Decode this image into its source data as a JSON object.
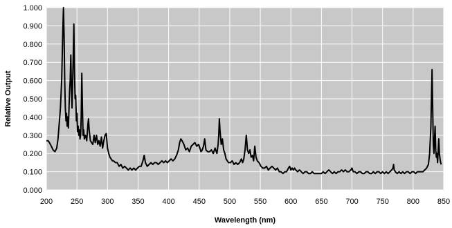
{
  "chart_data": {
    "type": "line",
    "title": "",
    "xlabel": "Wavelength (nm)",
    "ylabel": "Relative Output",
    "xlim": [
      200,
      850
    ],
    "ylim": [
      0,
      1.0
    ],
    "xticks": [
      "200",
      "250",
      "300",
      "350",
      "400",
      "450",
      "500",
      "550",
      "600",
      "650",
      "700",
      "750",
      "800",
      "850"
    ],
    "yticks": [
      "0.000",
      "0.100",
      "0.200",
      "0.300",
      "0.400",
      "0.500",
      "0.600",
      "0.700",
      "0.800",
      "0.900",
      "1.000"
    ],
    "grid": true,
    "legend": "none",
    "colors": {
      "plot_background": "#c8c8c8",
      "line": "#000000",
      "grid": "#ffffff"
    },
    "series": [
      {
        "values": [
          [
            200,
            0.27
          ],
          [
            203,
            0.27
          ],
          [
            205,
            0.26
          ],
          [
            208,
            0.24
          ],
          [
            211,
            0.22
          ],
          [
            214,
            0.21
          ],
          [
            217,
            0.23
          ],
          [
            219,
            0.28
          ],
          [
            221,
            0.36
          ],
          [
            223,
            0.45
          ],
          [
            225,
            0.6
          ],
          [
            226,
            0.75
          ],
          [
            227,
            0.88
          ],
          [
            228,
            1.0
          ],
          [
            229,
            0.85
          ],
          [
            230,
            0.6
          ],
          [
            231,
            0.45
          ],
          [
            232,
            0.38
          ],
          [
            233,
            0.42
          ],
          [
            234,
            0.35
          ],
          [
            235,
            0.4
          ],
          [
            236,
            0.34
          ],
          [
            237,
            0.45
          ],
          [
            238,
            0.55
          ],
          [
            239,
            0.6
          ],
          [
            240,
            0.74
          ],
          [
            241,
            0.55
          ],
          [
            242,
            0.45
          ],
          [
            243,
            0.6
          ],
          [
            244,
            0.75
          ],
          [
            245,
            0.91
          ],
          [
            246,
            0.65
          ],
          [
            247,
            0.5
          ],
          [
            248,
            0.52
          ],
          [
            249,
            0.38
          ],
          [
            250,
            0.42
          ],
          [
            251,
            0.32
          ],
          [
            252,
            0.35
          ],
          [
            253,
            0.3
          ],
          [
            254,
            0.33
          ],
          [
            255,
            0.28
          ],
          [
            256,
            0.3
          ],
          [
            257,
            0.4
          ],
          [
            258,
            0.64
          ],
          [
            259,
            0.45
          ],
          [
            260,
            0.3
          ],
          [
            261,
            0.33
          ],
          [
            262,
            0.28
          ],
          [
            264,
            0.3
          ],
          [
            266,
            0.27
          ],
          [
            268,
            0.36
          ],
          [
            269,
            0.39
          ],
          [
            270,
            0.33
          ],
          [
            272,
            0.27
          ],
          [
            274,
            0.26
          ],
          [
            276,
            0.25
          ],
          [
            278,
            0.3
          ],
          [
            280,
            0.26
          ],
          [
            282,
            0.3
          ],
          [
            284,
            0.25
          ],
          [
            286,
            0.27
          ],
          [
            288,
            0.24
          ],
          [
            290,
            0.29
          ],
          [
            292,
            0.23
          ],
          [
            294,
            0.27
          ],
          [
            296,
            0.3
          ],
          [
            298,
            0.31
          ],
          [
            300,
            0.23
          ],
          [
            302,
            0.2
          ],
          [
            304,
            0.18
          ],
          [
            306,
            0.17
          ],
          [
            308,
            0.16
          ],
          [
            310,
            0.16
          ],
          [
            313,
            0.15
          ],
          [
            316,
            0.15
          ],
          [
            319,
            0.13
          ],
          [
            322,
            0.14
          ],
          [
            325,
            0.12
          ],
          [
            328,
            0.13
          ],
          [
            331,
            0.12
          ],
          [
            334,
            0.11
          ],
          [
            337,
            0.12
          ],
          [
            340,
            0.11
          ],
          [
            343,
            0.12
          ],
          [
            346,
            0.11
          ],
          [
            349,
            0.12
          ],
          [
            352,
            0.13
          ],
          [
            355,
            0.13
          ],
          [
            358,
            0.16
          ],
          [
            360,
            0.19
          ],
          [
            362,
            0.15
          ],
          [
            365,
            0.13
          ],
          [
            368,
            0.14
          ],
          [
            371,
            0.15
          ],
          [
            374,
            0.14
          ],
          [
            377,
            0.15
          ],
          [
            380,
            0.15
          ],
          [
            383,
            0.14
          ],
          [
            386,
            0.15
          ],
          [
            389,
            0.16
          ],
          [
            392,
            0.15
          ],
          [
            395,
            0.16
          ],
          [
            398,
            0.15
          ],
          [
            401,
            0.16
          ],
          [
            404,
            0.17
          ],
          [
            407,
            0.16
          ],
          [
            410,
            0.17
          ],
          [
            413,
            0.19
          ],
          [
            416,
            0.22
          ],
          [
            418,
            0.26
          ],
          [
            420,
            0.28
          ],
          [
            422,
            0.27
          ],
          [
            425,
            0.25
          ],
          [
            428,
            0.22
          ],
          [
            431,
            0.23
          ],
          [
            434,
            0.21
          ],
          [
            437,
            0.24
          ],
          [
            440,
            0.25
          ],
          [
            443,
            0.26
          ],
          [
            446,
            0.24
          ],
          [
            449,
            0.25
          ],
          [
            451,
            0.23
          ],
          [
            453,
            0.21
          ],
          [
            455,
            0.22
          ],
          [
            457,
            0.24
          ],
          [
            459,
            0.28
          ],
          [
            461,
            0.22
          ],
          [
            464,
            0.21
          ],
          [
            467,
            0.21
          ],
          [
            470,
            0.22
          ],
          [
            473,
            0.2
          ],
          [
            476,
            0.23
          ],
          [
            479,
            0.2
          ],
          [
            481,
            0.25
          ],
          [
            482,
            0.3
          ],
          [
            483,
            0.39
          ],
          [
            484,
            0.33
          ],
          [
            485,
            0.29
          ],
          [
            486,
            0.25
          ],
          [
            488,
            0.28
          ],
          [
            490,
            0.22
          ],
          [
            492,
            0.2
          ],
          [
            494,
            0.17
          ],
          [
            496,
            0.16
          ],
          [
            498,
            0.15
          ],
          [
            501,
            0.15
          ],
          [
            504,
            0.16
          ],
          [
            507,
            0.14
          ],
          [
            510,
            0.15
          ],
          [
            513,
            0.14
          ],
          [
            516,
            0.15
          ],
          [
            519,
            0.17
          ],
          [
            521,
            0.15
          ],
          [
            523,
            0.17
          ],
          [
            525,
            0.22
          ],
          [
            527,
            0.3
          ],
          [
            529,
            0.22
          ],
          [
            531,
            0.2
          ],
          [
            533,
            0.22
          ],
          [
            535,
            0.18
          ],
          [
            537,
            0.19
          ],
          [
            539,
            0.16
          ],
          [
            541,
            0.24
          ],
          [
            543,
            0.18
          ],
          [
            545,
            0.16
          ],
          [
            548,
            0.15
          ],
          [
            551,
            0.13
          ],
          [
            554,
            0.12
          ],
          [
            557,
            0.12
          ],
          [
            560,
            0.13
          ],
          [
            563,
            0.11
          ],
          [
            566,
            0.12
          ],
          [
            569,
            0.13
          ],
          [
            572,
            0.12
          ],
          [
            575,
            0.11
          ],
          [
            578,
            0.12
          ],
          [
            581,
            0.1
          ],
          [
            584,
            0.1
          ],
          [
            587,
            0.09
          ],
          [
            590,
            0.1
          ],
          [
            593,
            0.1
          ],
          [
            596,
            0.12
          ],
          [
            598,
            0.13
          ],
          [
            600,
            0.11
          ],
          [
            602,
            0.12
          ],
          [
            604,
            0.11
          ],
          [
            606,
            0.12
          ],
          [
            608,
            0.11
          ],
          [
            611,
            0.1
          ],
          [
            614,
            0.11
          ],
          [
            617,
            0.1
          ],
          [
            620,
            0.09
          ],
          [
            623,
            0.1
          ],
          [
            626,
            0.1
          ],
          [
            629,
            0.09
          ],
          [
            632,
            0.09
          ],
          [
            635,
            0.1
          ],
          [
            638,
            0.09
          ],
          [
            641,
            0.09
          ],
          [
            644,
            0.09
          ],
          [
            647,
            0.09
          ],
          [
            650,
            0.09
          ],
          [
            653,
            0.1
          ],
          [
            656,
            0.09
          ],
          [
            659,
            0.1
          ],
          [
            662,
            0.11
          ],
          [
            665,
            0.1
          ],
          [
            668,
            0.09
          ],
          [
            671,
            0.1
          ],
          [
            674,
            0.09
          ],
          [
            677,
            0.1
          ],
          [
            680,
            0.1
          ],
          [
            683,
            0.11
          ],
          [
            686,
            0.1
          ],
          [
            689,
            0.11
          ],
          [
            692,
            0.1
          ],
          [
            695,
            0.1
          ],
          [
            698,
            0.11
          ],
          [
            700,
            0.12
          ],
          [
            702,
            0.1
          ],
          [
            705,
            0.1
          ],
          [
            708,
            0.09
          ],
          [
            711,
            0.1
          ],
          [
            714,
            0.1
          ],
          [
            717,
            0.09
          ],
          [
            720,
            0.09
          ],
          [
            723,
            0.1
          ],
          [
            726,
            0.1
          ],
          [
            729,
            0.09
          ],
          [
            732,
            0.09
          ],
          [
            735,
            0.1
          ],
          [
            738,
            0.09
          ],
          [
            741,
            0.1
          ],
          [
            744,
            0.1
          ],
          [
            747,
            0.09
          ],
          [
            750,
            0.1
          ],
          [
            753,
            0.09
          ],
          [
            756,
            0.1
          ],
          [
            759,
            0.09
          ],
          [
            762,
            0.1
          ],
          [
            765,
            0.11
          ],
          [
            767,
            0.12
          ],
          [
            768,
            0.14
          ],
          [
            769,
            0.11
          ],
          [
            771,
            0.1
          ],
          [
            774,
            0.09
          ],
          [
            777,
            0.1
          ],
          [
            780,
            0.09
          ],
          [
            783,
            0.1
          ],
          [
            786,
            0.09
          ],
          [
            789,
            0.1
          ],
          [
            792,
            0.1
          ],
          [
            795,
            0.09
          ],
          [
            798,
            0.1
          ],
          [
            801,
            0.1
          ],
          [
            804,
            0.09
          ],
          [
            807,
            0.1
          ],
          [
            810,
            0.1
          ],
          [
            813,
            0.1
          ],
          [
            816,
            0.1
          ],
          [
            819,
            0.11
          ],
          [
            822,
            0.12
          ],
          [
            825,
            0.14
          ],
          [
            827,
            0.2
          ],
          [
            829,
            0.35
          ],
          [
            830,
            0.5
          ],
          [
            831,
            0.66
          ],
          [
            832,
            0.45
          ],
          [
            833,
            0.25
          ],
          [
            834,
            0.2
          ],
          [
            835,
            0.28
          ],
          [
            836,
            0.35
          ],
          [
            837,
            0.22
          ],
          [
            838,
            0.18
          ],
          [
            839,
            0.2
          ],
          [
            840,
            0.15
          ],
          [
            841,
            0.22
          ],
          [
            842,
            0.28
          ],
          [
            843,
            0.2
          ],
          [
            844,
            0.17
          ],
          [
            845,
            0.15
          ],
          [
            846,
            0.14
          ]
        ]
      }
    ]
  }
}
